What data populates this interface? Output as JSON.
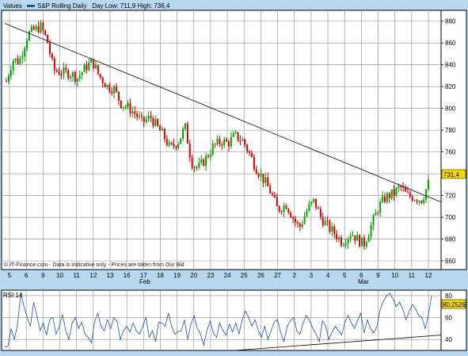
{
  "header": {
    "values_label": "Values",
    "legend_text": "S&P Rolling Daily   Day Low: 711,9 High: 736,4"
  },
  "watermark": "© IT-Finance.com - Data is indicative only - Prices are taken from Our Bid",
  "colors": {
    "background": "#b8d8f0",
    "plot_bg": "#ffffff",
    "grid": "#8a8a8a",
    "up_candle": "#00a000",
    "down_candle": "#d00000",
    "trendline": "#000000",
    "rsi_line": "#2050a0",
    "last_price_box": "#ffd700"
  },
  "chart_data": [
    {
      "type": "candlestick",
      "title": "S&P Rolling Daily",
      "day_low": "711,9",
      "day_high": "736,4",
      "last_price_label": "731,4",
      "y_ticks": [
        "660",
        "680",
        "700",
        "720",
        "740",
        "760",
        "780",
        "800",
        "820",
        "840",
        "860",
        "880"
      ],
      "ylim": [
        652,
        890
      ],
      "x_tick_labels": [
        "5",
        "6",
        "9",
        "10",
        "11",
        "12",
        "13",
        "16",
        "17",
        "18",
        "19",
        "20",
        "23",
        "24",
        "25",
        "26",
        "27",
        "2",
        "3",
        "4",
        "5",
        "6",
        "9",
        "10",
        "11",
        "12"
      ],
      "month_labels": [
        {
          "label": "Feb",
          "after_tick": 7
        },
        {
          "label": "Mar",
          "after_tick": 21
        }
      ],
      "grid": true,
      "trendline": {
        "from": {
          "x": 0,
          "y": 878
        },
        "to": {
          "x": 26.1,
          "y": 714
        }
      },
      "price_path": [
        [
          0,
          825
        ],
        [
          0.3,
          845
        ],
        [
          0.6,
          843
        ],
        [
          1.0,
          868
        ],
        [
          1.3,
          872
        ],
        [
          1.6,
          875
        ],
        [
          1.9,
          862
        ],
        [
          2.2,
          835
        ],
        [
          2.6,
          833
        ],
        [
          3.0,
          832
        ],
        [
          3.3,
          828
        ],
        [
          3.7,
          838
        ],
        [
          4.0,
          843
        ],
        [
          4.3,
          830
        ],
        [
          4.7,
          820
        ],
        [
          5.0,
          818
        ],
        [
          5.3,
          805
        ],
        [
          5.7,
          800
        ],
        [
          6.0,
          795
        ],
        [
          6.3,
          787
        ],
        [
          6.7,
          792
        ],
        [
          7.0,
          783
        ],
        [
          7.3,
          775
        ],
        [
          7.6,
          763
        ],
        [
          8.0,
          770
        ],
        [
          8.3,
          783
        ],
        [
          8.6,
          750
        ],
        [
          8.9,
          745
        ],
        [
          9.3,
          755
        ],
        [
          9.6,
          765
        ],
        [
          10.0,
          770
        ],
        [
          10.3,
          768
        ],
        [
          10.6,
          775
        ],
        [
          11.0,
          770
        ],
        [
          11.3,
          758
        ],
        [
          11.6,
          745
        ],
        [
          12.0,
          733
        ],
        [
          12.3,
          722
        ],
        [
          12.6,
          707
        ],
        [
          13.0,
          712
        ],
        [
          13.3,
          700
        ],
        [
          13.6,
          690
        ],
        [
          14.0,
          708
        ],
        [
          14.3,
          715
        ],
        [
          14.6,
          700
        ],
        [
          15.0,
          690
        ],
        [
          15.3,
          684
        ],
        [
          15.6,
          677
        ],
        [
          16.0,
          686
        ],
        [
          16.3,
          680
        ],
        [
          16.6,
          675
        ],
        [
          16.9,
          690
        ],
        [
          17.3,
          710
        ],
        [
          17.6,
          718
        ],
        [
          18.0,
          722
        ],
        [
          18.3,
          728
        ],
        [
          18.6,
          720
        ],
        [
          19.0,
          718
        ],
        [
          19.3,
          716
        ],
        [
          19.6,
          731
        ]
      ]
    },
    {
      "type": "line",
      "title": "RSI 14",
      "last_value_label": "80,2526",
      "y_ticks": [
        "40",
        "60",
        "80"
      ],
      "ylim": [
        30,
        85
      ],
      "lines": [
        [
          33,
          34,
          50,
          40,
          54,
          82,
          70,
          60,
          52,
          74,
          62,
          48,
          55,
          44,
          58,
          60,
          45,
          52,
          63,
          48,
          40,
          55,
          60,
          50,
          56,
          45,
          42,
          37,
          56,
          64,
          52,
          48,
          58,
          50,
          60,
          57,
          40,
          48,
          52,
          47,
          55,
          48,
          45,
          52,
          60,
          42,
          48,
          38,
          56,
          55,
          52,
          64,
          52,
          45,
          47,
          48,
          58,
          40,
          54,
          62,
          50,
          45,
          35,
          48,
          57,
          46,
          42,
          55,
          48,
          44,
          54,
          47,
          55,
          45,
          58,
          66,
          60,
          52,
          58,
          48,
          42,
          52,
          40,
          48,
          56,
          58,
          46,
          38,
          52,
          57,
          60,
          48,
          45,
          55,
          62,
          57,
          50,
          45,
          38,
          57,
          52,
          40,
          47,
          52,
          48,
          44,
          56,
          62,
          55,
          50,
          58,
          64,
          46,
          58,
          50,
          46,
          52,
          68,
          75,
          80,
          82,
          77,
          70,
          74,
          68,
          58,
          65,
          72,
          68,
          62,
          60,
          50,
          62,
          80
        ]
      ],
      "support_line": {
        "from": {
          "x": 0.53,
          "y": 30
        },
        "to": {
          "x": 1.0,
          "y": 44
        }
      },
      "grid": true
    }
  ]
}
